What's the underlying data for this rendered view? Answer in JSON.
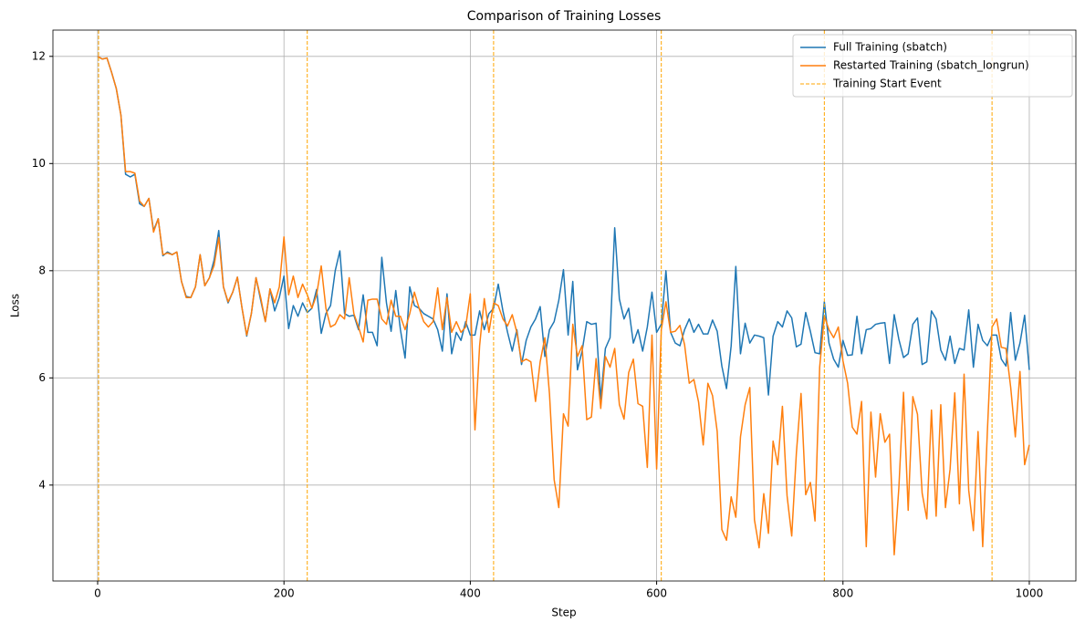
{
  "chart_data": {
    "type": "line",
    "title": "Comparison of Training Losses",
    "x_label": "Step",
    "y_label": "Loss",
    "x": [
      0,
      5,
      10,
      15,
      20,
      25,
      30,
      35,
      40,
      45,
      50,
      55,
      60,
      65,
      70,
      75,
      80,
      85,
      90,
      95,
      100,
      105,
      110,
      115,
      120,
      125,
      130,
      135,
      140,
      145,
      150,
      155,
      160,
      165,
      170,
      175,
      180,
      185,
      190,
      195,
      200,
      205,
      210,
      215,
      220,
      225,
      230,
      235,
      240,
      245,
      250,
      255,
      260,
      265,
      270,
      275,
      280,
      285,
      290,
      295,
      300,
      305,
      310,
      315,
      320,
      325,
      330,
      335,
      340,
      345,
      350,
      355,
      360,
      365,
      370,
      375,
      380,
      385,
      390,
      395,
      400,
      405,
      410,
      415,
      420,
      425,
      430,
      435,
      440,
      445,
      450,
      455,
      460,
      465,
      470,
      475,
      480,
      485,
      490,
      495,
      500,
      505,
      510,
      515,
      520,
      525,
      530,
      535,
      540,
      545,
      550,
      555,
      560,
      565,
      570,
      575,
      580,
      585,
      590,
      595,
      600,
      605,
      610,
      615,
      620,
      625,
      630,
      635,
      640,
      645,
      650,
      655,
      660,
      665,
      670,
      675,
      680,
      685,
      690,
      695,
      700,
      705,
      710,
      715,
      720,
      725,
      730,
      735,
      740,
      745,
      750,
      755,
      760,
      765,
      770,
      775,
      780,
      785,
      790,
      795,
      800,
      805,
      810,
      815,
      820,
      825,
      830,
      835,
      840,
      845,
      850,
      855,
      860,
      865,
      870,
      875,
      880,
      885,
      890,
      895,
      900,
      905,
      910,
      915,
      920,
      925,
      930,
      935,
      940,
      945,
      950,
      955,
      960,
      965,
      970,
      975,
      980,
      985,
      990,
      995,
      1000
    ],
    "series": [
      {
        "name": "Full Training (sbatch)",
        "color": "#1f77b4",
        "values": [
          12.0,
          11.95,
          11.97,
          11.7,
          11.4,
          10.9,
          9.8,
          9.75,
          9.8,
          9.25,
          9.2,
          9.35,
          8.75,
          8.97,
          8.28,
          8.35,
          8.3,
          8.35,
          7.8,
          7.52,
          7.5,
          7.7,
          8.3,
          7.72,
          7.87,
          8.2,
          8.75,
          7.7,
          7.4,
          7.6,
          7.88,
          7.3,
          6.78,
          7.2,
          7.87,
          7.45,
          7.05,
          7.66,
          7.25,
          7.5,
          7.9,
          6.92,
          7.35,
          7.15,
          7.4,
          7.22,
          7.3,
          7.65,
          6.83,
          7.2,
          7.35,
          8.0,
          8.37,
          7.2,
          7.15,
          7.17,
          6.9,
          7.55,
          6.85,
          6.85,
          6.6,
          8.25,
          7.4,
          6.87,
          7.63,
          6.9,
          6.37,
          7.7,
          7.35,
          7.3,
          7.2,
          7.15,
          7.1,
          6.9,
          6.5,
          7.57,
          6.45,
          6.85,
          6.7,
          7.05,
          6.8,
          6.8,
          7.25,
          6.9,
          7.2,
          7.3,
          7.75,
          7.25,
          6.85,
          6.5,
          6.9,
          6.25,
          6.7,
          6.95,
          7.1,
          7.33,
          6.4,
          6.9,
          7.05,
          7.45,
          8.02,
          6.8,
          7.8,
          6.15,
          6.5,
          7.05,
          7.0,
          7.02,
          5.6,
          6.55,
          6.75,
          8.8,
          7.47,
          7.1,
          7.3,
          6.65,
          6.9,
          6.5,
          6.95,
          7.6,
          6.85,
          7.0,
          8.0,
          6.85,
          6.65,
          6.6,
          6.9,
          7.1,
          6.85,
          7.0,
          6.82,
          6.82,
          7.08,
          6.87,
          6.22,
          5.8,
          6.6,
          8.08,
          6.45,
          7.02,
          6.65,
          6.8,
          6.78,
          6.75,
          5.68,
          6.78,
          7.05,
          6.95,
          7.25,
          7.12,
          6.58,
          6.63,
          7.22,
          6.87,
          6.47,
          6.45,
          7.42,
          6.65,
          6.35,
          6.2,
          6.7,
          6.42,
          6.43,
          7.15,
          6.45,
          6.9,
          6.92,
          7.0,
          7.02,
          7.03,
          6.27,
          7.18,
          6.72,
          6.38,
          6.45,
          7.0,
          7.12,
          6.25,
          6.3,
          7.25,
          7.1,
          6.52,
          6.33,
          6.78,
          6.27,
          6.55,
          6.52,
          7.27,
          6.2,
          7.0,
          6.7,
          6.6,
          6.8,
          6.8,
          6.35,
          6.22,
          7.22,
          6.33,
          6.65,
          7.17,
          6.15
        ]
      },
      {
        "name": "Restarted Training (sbatch_longrun)",
        "color": "#ff7f0e",
        "values": [
          12.0,
          11.95,
          11.97,
          11.7,
          11.4,
          10.9,
          9.85,
          9.85,
          9.82,
          9.3,
          9.2,
          9.35,
          8.72,
          8.97,
          8.3,
          8.33,
          8.3,
          8.35,
          7.8,
          7.5,
          7.5,
          7.7,
          8.3,
          7.72,
          7.87,
          8.1,
          8.62,
          7.7,
          7.42,
          7.6,
          7.88,
          7.3,
          6.8,
          7.2,
          7.87,
          7.5,
          7.05,
          7.66,
          7.4,
          7.7,
          8.63,
          7.55,
          7.9,
          7.5,
          7.75,
          7.55,
          7.3,
          7.55,
          8.09,
          7.3,
          6.95,
          7.0,
          7.18,
          7.1,
          7.87,
          7.2,
          6.95,
          6.67,
          7.45,
          7.47,
          7.47,
          7.1,
          7.0,
          7.45,
          7.15,
          7.15,
          6.9,
          7.2,
          7.6,
          7.3,
          7.05,
          6.95,
          7.05,
          7.68,
          6.9,
          7.5,
          6.85,
          7.05,
          6.85,
          6.95,
          7.57,
          5.03,
          6.6,
          7.48,
          6.85,
          7.4,
          7.35,
          7.1,
          6.97,
          7.18,
          6.85,
          6.3,
          6.35,
          6.3,
          5.56,
          6.3,
          6.75,
          5.7,
          4.1,
          3.58,
          5.33,
          5.1,
          7.0,
          6.4,
          6.6,
          5.22,
          5.27,
          6.36,
          5.43,
          6.4,
          6.2,
          6.55,
          5.5,
          5.23,
          6.1,
          6.35,
          5.52,
          5.47,
          4.33,
          6.8,
          4.3,
          6.9,
          7.42,
          6.85,
          6.87,
          6.98,
          6.62,
          5.9,
          5.97,
          5.55,
          4.75,
          5.9,
          5.67,
          5.0,
          3.17,
          2.97,
          3.78,
          3.4,
          4.9,
          5.5,
          5.82,
          3.35,
          2.83,
          3.84,
          3.1,
          4.82,
          4.38,
          5.47,
          3.8,
          3.05,
          4.6,
          5.71,
          3.82,
          4.05,
          3.33,
          6.2,
          7.15,
          6.9,
          6.75,
          6.95,
          6.32,
          5.9,
          5.08,
          4.95,
          5.56,
          2.85,
          5.36,
          4.15,
          5.33,
          4.8,
          4.95,
          2.7,
          3.95,
          5.73,
          3.53,
          5.65,
          5.32,
          3.85,
          3.37,
          5.4,
          3.42,
          5.5,
          3.58,
          4.3,
          5.72,
          3.65,
          6.07,
          3.9,
          3.15,
          5.0,
          2.85,
          5.0,
          6.95,
          7.1,
          6.57,
          6.55,
          5.83,
          4.9,
          6.12,
          4.38,
          4.75
        ]
      }
    ],
    "vlines": {
      "name": "Training Start Event",
      "color": "#ffa500",
      "x": [
        1,
        225,
        425,
        605,
        780,
        960
      ]
    },
    "xlim": [
      -48,
      1050
    ],
    "ylim": [
      2.21,
      12.49
    ],
    "xticks": [
      0,
      200,
      400,
      600,
      800,
      1000
    ],
    "yticks": [
      4,
      6,
      8,
      10,
      12
    ],
    "grid": true,
    "legend": "upper right"
  }
}
